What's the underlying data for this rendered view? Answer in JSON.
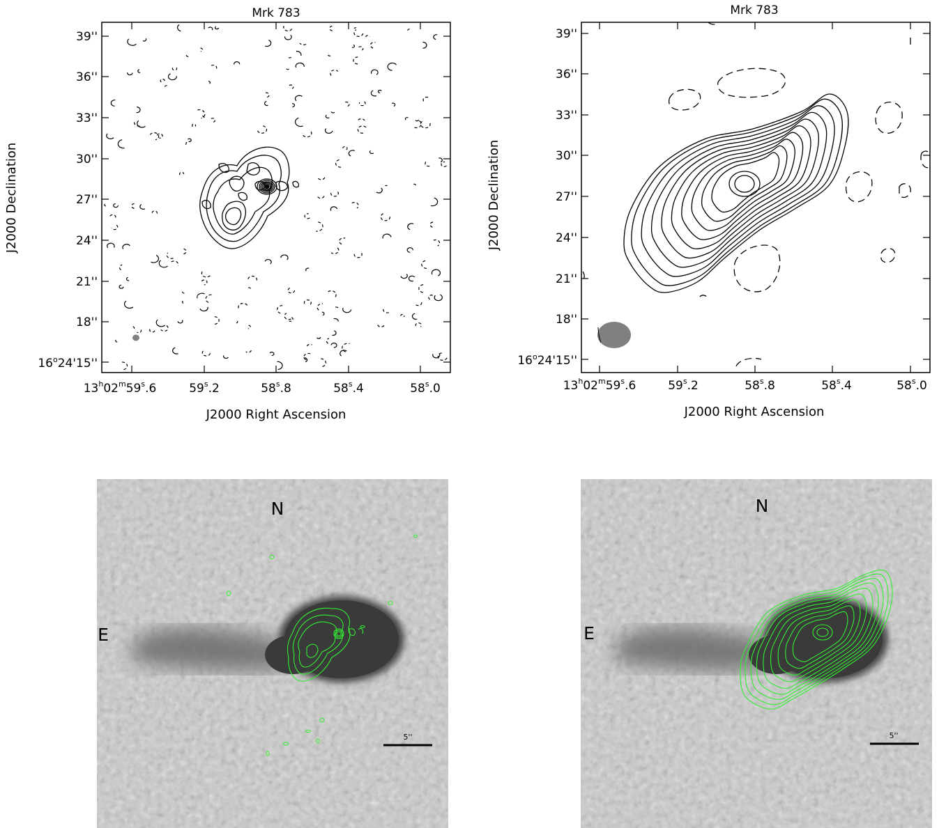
{
  "panels": {
    "top_left": {
      "title": "Mrk 783",
      "xlabel": "J2000 Right Ascension",
      "ylabel": "J2000 Declination",
      "x_ticks": [
        {
          "prefix": "13",
          "h": "h",
          "m_pre": "02",
          "m": "m",
          "s_pre": "59",
          "s": "s",
          "post": ".6"
        },
        {
          "prefix": "59",
          "s": "s",
          "post": ".2"
        },
        {
          "prefix": "58",
          "s": "s",
          "post": ".8"
        },
        {
          "prefix": "58",
          "s": "s",
          "post": ".4"
        },
        {
          "prefix": "58",
          "s": "s",
          "post": ".0"
        }
      ],
      "y_ticks": [
        "39''",
        "36''",
        "33''",
        "30''",
        "27''",
        "24''",
        "21''",
        "18''"
      ],
      "y_tick_first": {
        "deg": "16",
        "o": "o",
        "rest": "24'15''"
      }
    },
    "top_right": {
      "title": "Mrk 783",
      "xlabel": "J2000 Right Ascension",
      "ylabel": "J2000 Declination",
      "y_ticks": [
        "39''",
        "36''",
        "33''",
        "30''",
        "27''",
        "24''",
        "21''",
        "18''"
      ],
      "y_tick_first": {
        "deg": "16",
        "o": "o",
        "rest": "24'15''"
      }
    },
    "bottom_left": {
      "north": "N",
      "east": "E",
      "scale": "5''"
    },
    "bottom_right": {
      "north": "N",
      "east": "E",
      "scale": "5''"
    }
  },
  "colors": {
    "contour": "#000000",
    "overlay_contour": "#33ee33",
    "beam": "#808080",
    "galaxy_core": "#3a3a3a"
  }
}
